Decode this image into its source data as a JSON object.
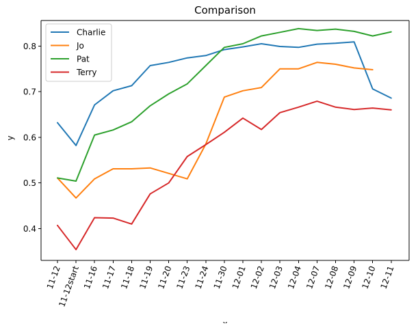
{
  "chart_data": {
    "type": "line",
    "title": "Comparison",
    "xlabel": "x",
    "ylabel": "y",
    "categories": [
      "11-12",
      "11-12start",
      "11-16",
      "11-17",
      "11-18",
      "11-19",
      "11-20",
      "11-23",
      "11-24",
      "11-30",
      "12-01",
      "12-02",
      "12-03",
      "12-04",
      "12-07",
      "12-08",
      "12-09",
      "12-10",
      "12-11"
    ],
    "ylim": [
      0.35,
      0.88
    ],
    "yticks": [
      "0.4",
      "0.5",
      "0.6",
      "0.7",
      "0.8"
    ],
    "grid": false,
    "legend_position": "top-left",
    "series": [
      {
        "name": "Charlie",
        "color": "#1f77b4",
        "values": [
          0.632,
          0.582,
          0.671,
          0.702,
          0.713,
          0.757,
          0.764,
          0.774,
          0.779,
          0.792,
          0.798,
          0.805,
          0.799,
          0.797,
          0.804,
          0.806,
          0.809,
          0.706,
          0.686
        ]
      },
      {
        "name": "Jo",
        "color": "#ff7f0e",
        "values": [
          0.511,
          0.467,
          0.509,
          0.531,
          0.531,
          0.533,
          0.521,
          0.509,
          0.585,
          0.688,
          0.702,
          0.709,
          0.75,
          0.75,
          0.764,
          0.76,
          0.752,
          0.748,
          null
        ]
      },
      {
        "name": "Pat",
        "color": "#2ca02c",
        "values": [
          0.511,
          0.504,
          0.605,
          0.616,
          0.634,
          0.669,
          0.695,
          0.717,
          0.757,
          0.797,
          0.805,
          0.822,
          0.83,
          0.838,
          0.834,
          0.837,
          0.832,
          0.822,
          0.831
        ]
      },
      {
        "name": "Terry",
        "color": "#d62728",
        "values": [
          0.407,
          0.354,
          0.424,
          0.423,
          0.41,
          0.476,
          0.5,
          0.558,
          0.584,
          0.611,
          0.642,
          0.617,
          0.654,
          0.666,
          0.679,
          0.666,
          0.661,
          0.664,
          0.66
        ]
      }
    ]
  }
}
